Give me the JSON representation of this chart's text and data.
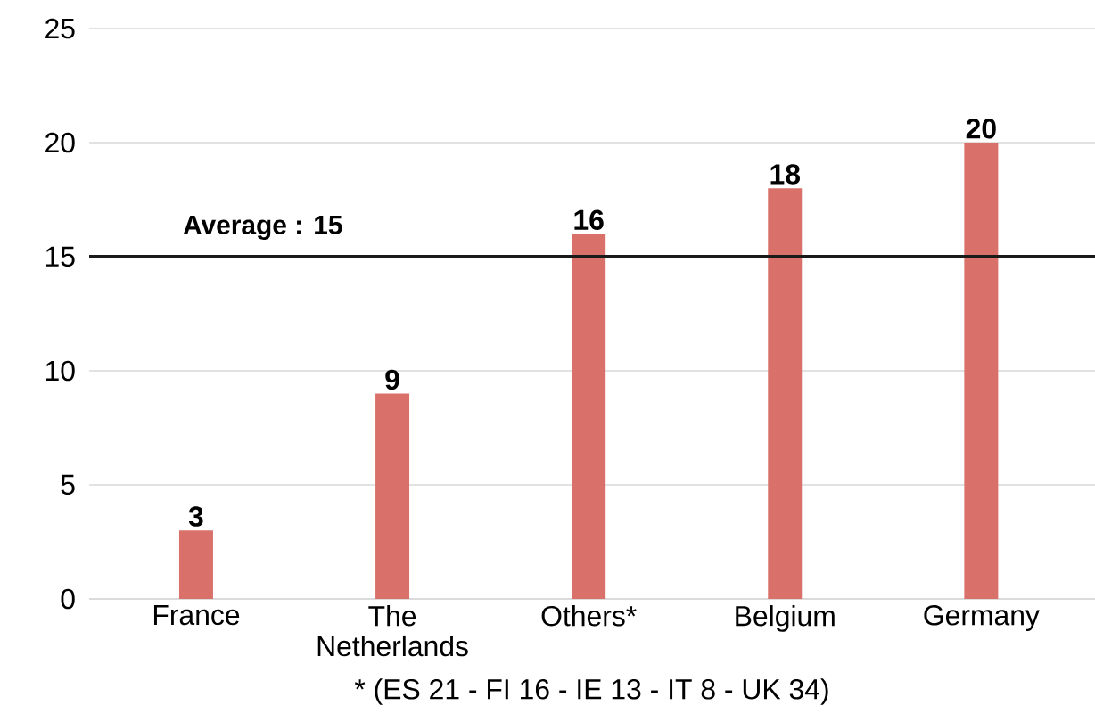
{
  "chart_data": {
    "type": "bar",
    "categories": [
      "France",
      "The Netherlands",
      "Others*",
      "Belgium",
      "Germany"
    ],
    "values": [
      3,
      9,
      16,
      18,
      20
    ],
    "color": "#d9706a",
    "ylim": [
      0,
      25
    ],
    "yticks": [
      0,
      5,
      10,
      15,
      20,
      25
    ],
    "grid": "y",
    "data_labels": true,
    "ref_lines": [
      {
        "axis": "y",
        "value": 15,
        "label": "Average : 15",
        "color": "#1a1a1a"
      }
    ],
    "annotations": [
      "* (ES 21 - FI 16 - IE 13 - IT 8 - UK 34)"
    ]
  }
}
